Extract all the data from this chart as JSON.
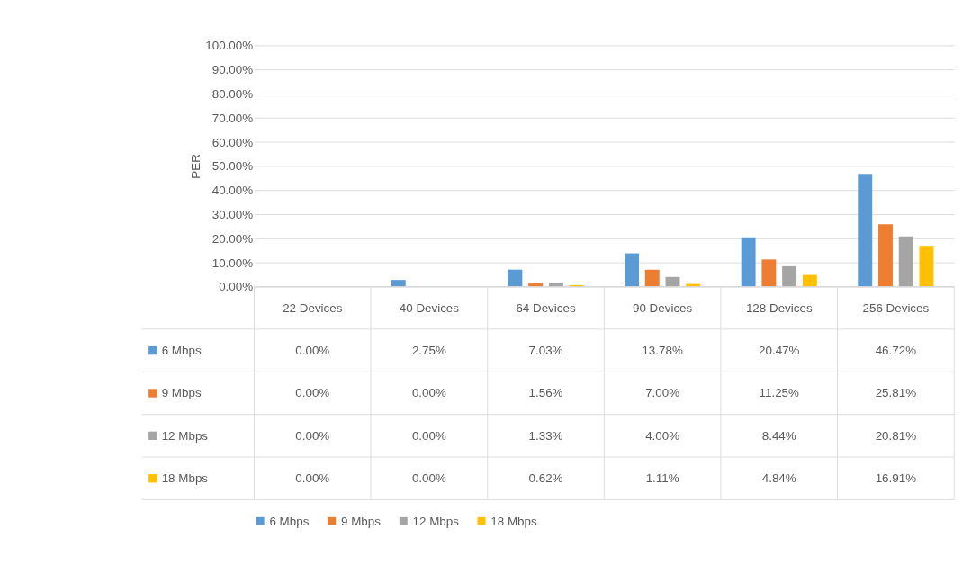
{
  "chart_data": {
    "type": "bar",
    "ylabel": "PER",
    "categories": [
      "22 Devices",
      "40 Devices",
      "64 Devices",
      "90 Devices",
      "128 Devices",
      "256 Devices"
    ],
    "ylim": [
      0,
      100
    ],
    "yticks": [
      {
        "value": 0,
        "label": "0.00%"
      },
      {
        "value": 10,
        "label": "10.00%"
      },
      {
        "value": 20,
        "label": "20.00%"
      },
      {
        "value": 30,
        "label": "30.00%"
      },
      {
        "value": 40,
        "label": "40.00%"
      },
      {
        "value": 50,
        "label": "50.00%"
      },
      {
        "value": 60,
        "label": "60.00%"
      },
      {
        "value": 70,
        "label": "70.00%"
      },
      {
        "value": 80,
        "label": "80.00%"
      },
      {
        "value": 90,
        "label": "90.00%"
      },
      {
        "value": 100,
        "label": "100.00%"
      }
    ],
    "grid": "y",
    "legend": "bottom",
    "series": [
      {
        "name": "6 Mbps",
        "color": "#5b9bd5",
        "values": [
          0,
          2.75,
          7.03,
          13.78,
          20.47,
          46.72
        ],
        "value_labels": [
          "0.00%",
          "2.75%",
          "7.03%",
          "13.78%",
          "20.47%",
          "46.72%"
        ]
      },
      {
        "name": "9 Mbps",
        "color": "#ed7d31",
        "values": [
          0,
          0,
          1.56,
          7.0,
          11.25,
          25.81
        ],
        "value_labels": [
          "0.00%",
          "0.00%",
          "1.56%",
          "7.00%",
          "11.25%",
          "25.81%"
        ]
      },
      {
        "name": "12 Mbps",
        "color": "#a5a5a5",
        "values": [
          0,
          0,
          1.33,
          4.0,
          8.44,
          20.81
        ],
        "value_labels": [
          "0.00%",
          "0.00%",
          "1.33%",
          "4.00%",
          "8.44%",
          "20.81%"
        ]
      },
      {
        "name": "18 Mbps",
        "color": "#ffc000",
        "values": [
          0,
          0,
          0.62,
          1.11,
          4.84,
          16.91
        ],
        "value_labels": [
          "0.00%",
          "0.00%",
          "0.62%",
          "1.11%",
          "4.84%",
          "16.91%"
        ]
      }
    ]
  }
}
